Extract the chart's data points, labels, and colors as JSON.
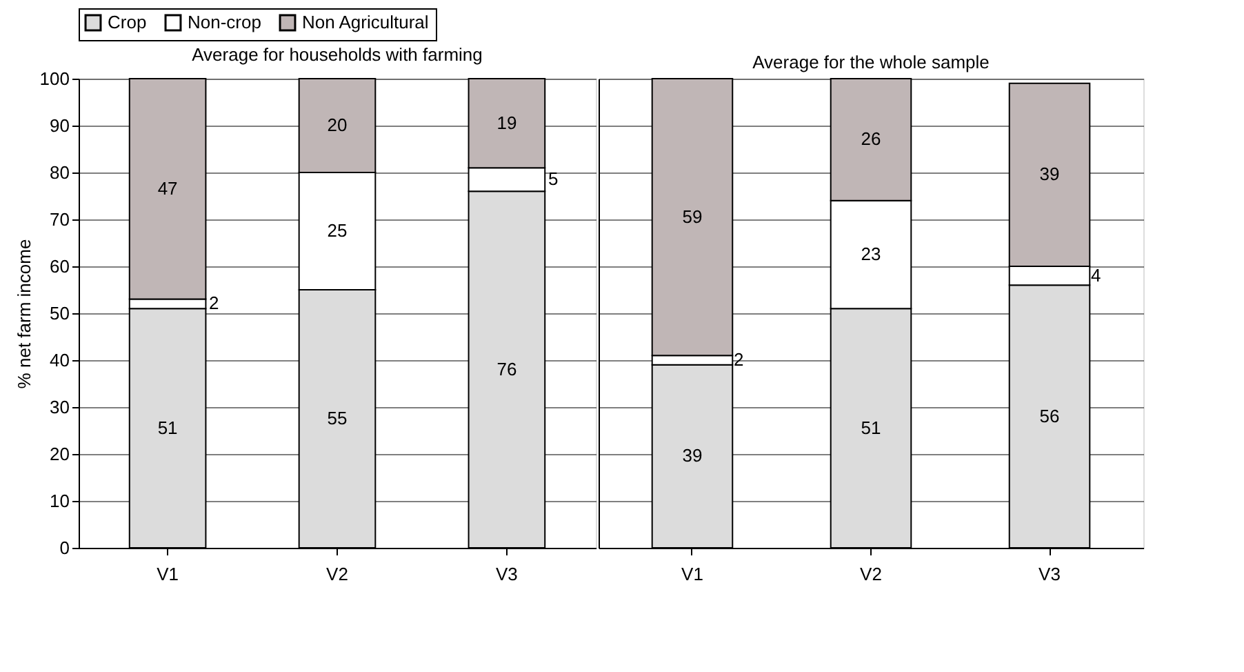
{
  "chart_data": [
    {
      "type": "bar",
      "stacked": true,
      "title": "Average for households with farming",
      "ylabel": "% net farm income",
      "categories": [
        "V1",
        "V2",
        "V3"
      ],
      "series": [
        {
          "name": "Crop",
          "color": "#dcdcdc",
          "values": [
            51,
            55,
            76
          ]
        },
        {
          "name": "Non-crop",
          "color": "#ffffff",
          "values": [
            2,
            25,
            5
          ]
        },
        {
          "name": "Non Agricultural",
          "color": "#c0b6b6",
          "values": [
            47,
            20,
            19
          ]
        }
      ],
      "ylim": [
        0,
        100
      ],
      "yticks": [
        0,
        10,
        20,
        30,
        40,
        50,
        60,
        70,
        80,
        90,
        100
      ],
      "grid": "y",
      "legend": "top",
      "data_labels": true
    },
    {
      "type": "bar",
      "stacked": true,
      "title": "Average for the whole sample",
      "categories": [
        "V1",
        "V2",
        "V3"
      ],
      "series": [
        {
          "name": "Crop",
          "color": "#dcdcdc",
          "values": [
            39,
            51,
            56
          ]
        },
        {
          "name": "Non-crop",
          "color": "#ffffff",
          "values": [
            2,
            23,
            4
          ]
        },
        {
          "name": "Non Agricultural",
          "color": "#c0b6b6",
          "values": [
            59,
            26,
            39
          ]
        }
      ],
      "ylim": [
        0,
        100
      ],
      "yticks": [
        0,
        10,
        20,
        30,
        40,
        50,
        60,
        70,
        80,
        90,
        100
      ],
      "grid": "y",
      "tick_labels": "x",
      "data_labels": true
    }
  ]
}
